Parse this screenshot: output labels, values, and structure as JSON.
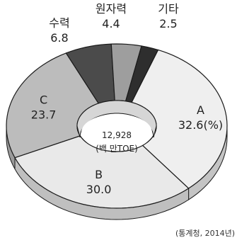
{
  "chart_data": {
    "type": "pie",
    "title": "",
    "center_label": {
      "value": "12,928",
      "unit": "(백 만TOE)"
    },
    "source": "(통계청, 2014년)",
    "categories": [
      "A",
      "B",
      "C",
      "수력",
      "원자력",
      "기타"
    ],
    "values": [
      32.6,
      30.0,
      23.7,
      6.8,
      4.4,
      2.5
    ],
    "value_labels": [
      "32.6(%)",
      "30.0",
      "23.7",
      "6.8",
      "4.4",
      "2.5"
    ],
    "colors": [
      "#efefef",
      "#e9e9e9",
      "#bcbcbc",
      "#4b4b4b",
      "#9e9e9e",
      "#2e2e2e"
    ],
    "ring_style": "3d-donut"
  }
}
